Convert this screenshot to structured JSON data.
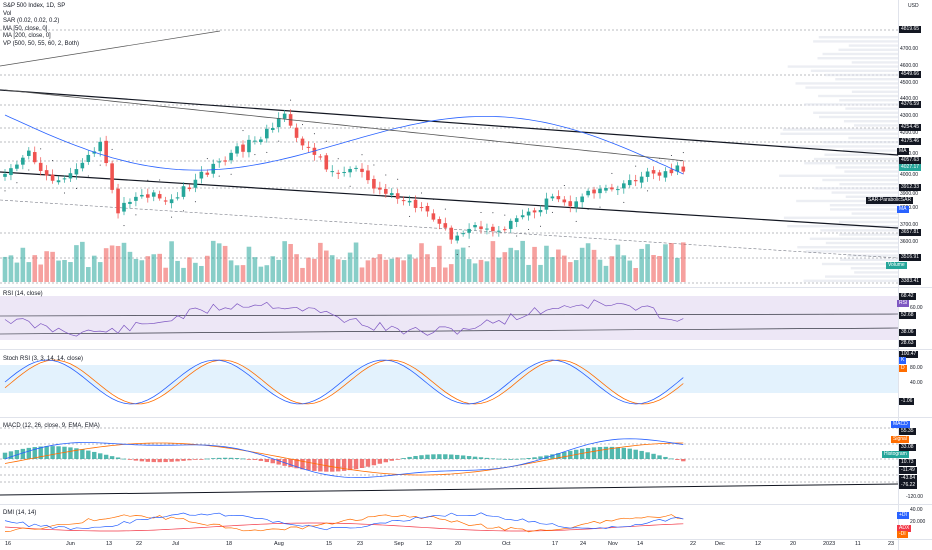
{
  "legend": {
    "title": "S&P 500 Index, 1D, SP",
    "vol": "Vol",
    "sar": "SAR (0.02, 0.02, 0.2)",
    "ma50": "MA [50, close, 0]",
    "ma200": "MA [200, close, 0]",
    "vp": "VP (500, 50, 55, 60, 2, Both)"
  },
  "rsi_legend": "RSI (14, close)",
  "stoch_legend": "Stoch RSI (3, 3, 14, 14, close)",
  "macd_legend": "MACD (12, 26, close, 9, EMA, EMA)",
  "dmi_legend": "DMI (14, 14)",
  "currency": "USD",
  "price_axis": {
    "ticks": [
      "4700.00",
      "4600.00",
      "4500.00",
      "4400.00",
      "4300.00",
      "4200.00",
      "4100.00",
      "4000.00",
      "3900.00",
      "3800.00",
      "3700.00",
      "3600.00",
      "3500.00"
    ],
    "levels": [
      "4819.65",
      "4549.66",
      "4376.59",
      "4254.45",
      "4175.46",
      "4057.63",
      "4027.17",
      "3912.33",
      "3657.81",
      "3516.91",
      "3383.41"
    ],
    "tags": {
      "ma": "MA",
      "sar": "SAR-ParabolicSAR",
      "ma_small": "MA",
      "volume": "Volume"
    }
  },
  "rsi_axis": {
    "tag": "RSI",
    "values": [
      "68.42",
      "60.00",
      "52.68",
      "38.06",
      "28.63"
    ]
  },
  "stoch_axis": {
    "values": [
      "100.47",
      "80.00",
      "40.00",
      "-1.06"
    ],
    "tags": [
      "K",
      "D"
    ]
  },
  "macd_axis": {
    "values": [
      "55.35",
      "33.08",
      "10.73",
      "-11.49",
      "-43.84",
      "-76.22",
      "-120.00"
    ],
    "tags": {
      "macd": "MACD",
      "signal": "Signal",
      "histogram": "Histogram"
    }
  },
  "dmi_axis": {
    "values": [
      "40.00",
      "20.000"
    ],
    "tags": [
      "+DI",
      "ADX",
      "-DI"
    ]
  },
  "time_axis": [
    "16",
    "Jun",
    "13",
    "22",
    "Jul",
    "18",
    "Aug",
    "15",
    "23",
    "Sep",
    "12",
    "20",
    "Oct",
    "17",
    "24",
    "Nov",
    "14",
    "22",
    "Dec",
    "12",
    "20",
    "2023",
    "11",
    "23"
  ],
  "colors": {
    "up": "#26a69a",
    "down": "#ef5350",
    "ma50": "#2962ff",
    "ma200": "#555555",
    "rsi": "#7e57c2",
    "rsi_band": "#ede7f6",
    "stoch_band": "#e3f2fd",
    "stoch_k": "#2962ff",
    "stoch_d": "#ff6d00",
    "dmi_plus": "#2962ff",
    "dmi_minus": "#ff6d00",
    "adx": "#f23645"
  }
}
